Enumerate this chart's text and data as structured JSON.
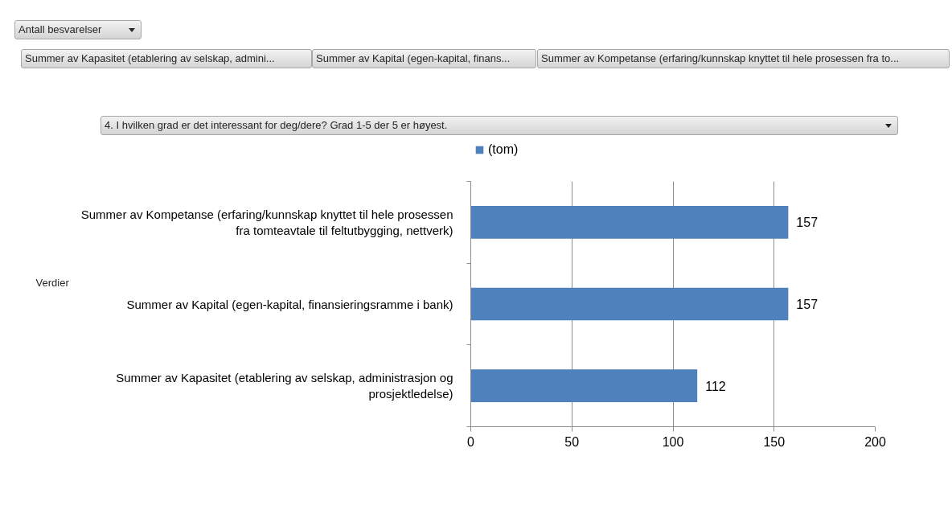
{
  "chart_data": {
    "type": "bar",
    "orientation": "horizontal",
    "title": "Antall besvarelser",
    "legend_title": "4. I hvilken grad er det interessant for deg/dere? Grad 1-5 der 5 er høyest.",
    "ylabel": "Verdier",
    "annotations": [
      "Summer av Kapasitet (etablering av selskap, admini...",
      "Summer av Kapital (egen-kapital, finans...",
      "Summer av Kompetanse (erfaring/kunnskap knyttet til hele prosessen fra to..."
    ],
    "categories": [
      "Summer av Kompetanse (erfaring/kunnskap knyttet til hele prosessen fra tomteavtale til feltutbygging, nettverk)",
      "Summer av Kapital (egen-kapital, finansieringsramme i bank)",
      "Summer av Kapasitet (etablering av selskap, administrasjon og prosjektledelse)"
    ],
    "series": [
      {
        "name": "(tom)",
        "color": "#4f81bd",
        "values": [
          157,
          157,
          112
        ]
      }
    ],
    "xlim": [
      0,
      200
    ],
    "xticks": [
      0,
      50,
      100,
      150,
      200
    ],
    "grid": "x",
    "legend": "top",
    "data_labels": true
  }
}
